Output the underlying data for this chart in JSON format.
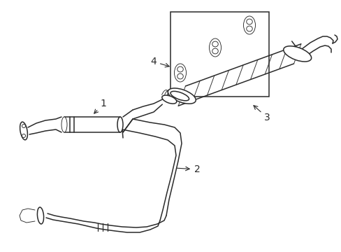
{
  "bg_color": "#ffffff",
  "line_color": "#2a2a2a",
  "lw": 1.1,
  "tlw": 0.65,
  "font_size": 10,
  "label_1": "1",
  "label_2": "2",
  "label_3": "3",
  "label_4": "4"
}
